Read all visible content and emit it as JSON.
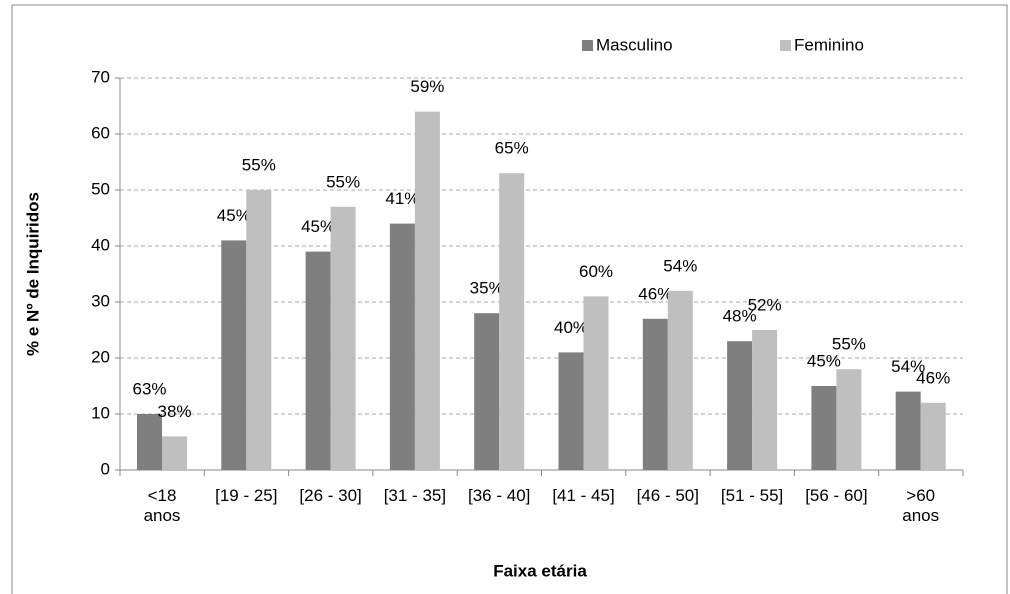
{
  "chart_data": {
    "type": "bar",
    "xlabel": "Faixa etária",
    "ylabel": "% e Nº de Inquiridos",
    "categories": [
      "<18\nanos",
      "[19 - 25]",
      "[26 - 30]",
      "[31 - 35]",
      "[36 - 40]",
      "[41 - 45]",
      "[46 - 50]",
      "[51 - 55]",
      "[56 - 60]",
      ">60\nanos"
    ],
    "series": [
      {
        "name": "Masculino",
        "color": "#7f7f7f",
        "values": [
          10,
          41,
          39,
          44,
          28,
          21,
          27,
          23,
          15,
          14
        ],
        "annotations": [
          "63%",
          "45%",
          "45%",
          "41%",
          "35%",
          "40%",
          "46%",
          "48%",
          "45%",
          "54%"
        ]
      },
      {
        "name": "Feminino",
        "color": "#bfbfbf",
        "values": [
          6,
          50,
          47,
          64,
          53,
          31,
          32,
          25,
          18,
          12
        ],
        "annotations": [
          "38%",
          "55%",
          "55%",
          "59%",
          "65%",
          "60%",
          "54%",
          "52%",
          "55%",
          "46%"
        ]
      }
    ],
    "ylim": [
      0,
      70
    ],
    "yticks": [
      0,
      10,
      20,
      30,
      40,
      50,
      60,
      70
    ],
    "grid": true,
    "legend": "top"
  }
}
